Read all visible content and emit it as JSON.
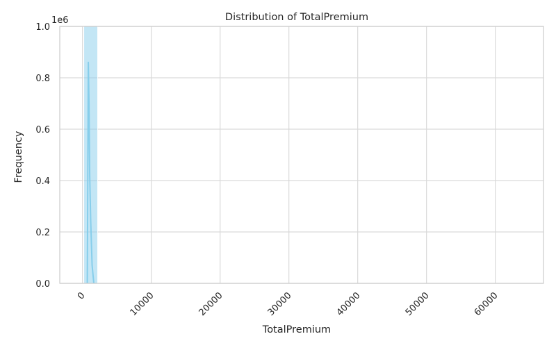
{
  "chart_data": {
    "type": "bar",
    "title": "Distribution of TotalPremium",
    "xlabel": "TotalPremium",
    "ylabel": "Frequency",
    "y_offset_text": "1e6",
    "xlim": [
      -3300,
      67000
    ],
    "ylim": [
      0,
      1000000
    ],
    "x_ticks": [
      0,
      10000,
      20000,
      30000,
      40000,
      50000,
      60000
    ],
    "y_ticks": [
      0.0,
      0.2,
      0.4,
      0.6,
      0.8,
      1.0
    ],
    "grid": true,
    "bar_color": "#87ceeb",
    "kde_color": "#87ceeb",
    "bins": [
      {
        "x0": 200,
        "x1": 2200,
        "value": 1000000
      }
    ],
    "kde": [
      {
        "x": 700,
        "y": 0
      },
      {
        "x": 850,
        "y": 860000
      },
      {
        "x": 950,
        "y": 700000
      },
      {
        "x": 1050,
        "y": 420000
      },
      {
        "x": 1200,
        "y": 240000
      },
      {
        "x": 1400,
        "y": 70000
      },
      {
        "x": 1650,
        "y": 0
      }
    ]
  }
}
